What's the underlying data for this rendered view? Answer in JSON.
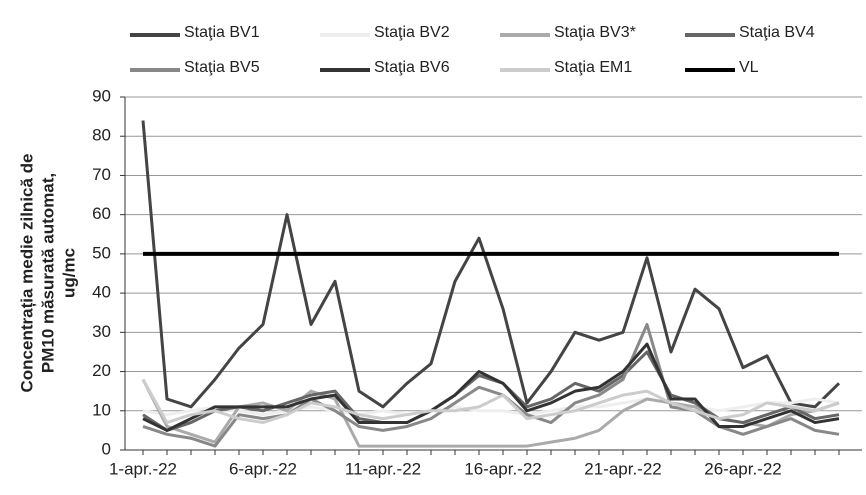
{
  "chart_data": {
    "type": "line",
    "ylabel": [
      "Concentrația medie zilnică de",
      "PM10 măsurată automat,",
      "ug/mc"
    ],
    "categories": [
      "1-apr.-22",
      null,
      null,
      null,
      null,
      "6-apr.-22",
      null,
      null,
      null,
      null,
      "11-apr.-22",
      null,
      null,
      null,
      null,
      "16-apr.-22",
      null,
      null,
      null,
      null,
      "21-apr.-22",
      null,
      null,
      null,
      null,
      "26-apr.-22",
      null,
      null,
      null,
      null
    ],
    "ylim": [
      0,
      90
    ],
    "yticks": [
      0,
      10,
      20,
      30,
      40,
      50,
      60,
      70,
      80,
      90
    ],
    "grid": true,
    "series": [
      {
        "name": "Staţia BV1",
        "color": "#444444",
        "values": [
          84,
          13,
          11,
          18,
          26,
          32,
          60,
          32,
          43,
          15,
          11,
          17,
          22,
          43,
          54,
          36,
          12,
          20,
          30,
          28,
          30,
          49,
          25,
          41,
          36,
          21,
          24,
          12,
          11,
          17
        ]
      },
      {
        "name": "Staţia BV2",
        "color": "#eeeeee",
        "values": [
          10,
          9,
          10,
          11,
          10,
          9,
          10,
          11,
          10,
          9,
          10,
          9,
          10,
          11,
          10,
          10,
          9,
          10,
          11,
          11,
          12,
          13,
          12,
          11,
          10,
          11,
          12,
          12,
          13,
          12
        ]
      },
      {
        "name": "Staţia BV3*",
        "color": "#aaaaaa",
        "values": [
          18,
          6,
          4,
          2,
          11,
          12,
          10,
          15,
          13,
          1,
          1,
          1,
          1,
          1,
          1,
          1,
          1,
          2,
          3,
          5,
          10,
          13,
          12,
          11,
          8,
          7,
          6,
          9,
          10,
          12
        ]
      },
      {
        "name": "Staţia BV4",
        "color": "#666666",
        "values": [
          9,
          5,
          7,
          10,
          11,
          10,
          12,
          14,
          15,
          8,
          7,
          7,
          10,
          14,
          19,
          17,
          11,
          13,
          17,
          15,
          19,
          25,
          14,
          12,
          8,
          7,
          9,
          11,
          8,
          9
        ]
      },
      {
        "name": "Staţia BV5",
        "color": "#888888",
        "values": [
          6,
          4,
          3,
          1,
          9,
          8,
          9,
          13,
          10,
          6,
          5,
          6,
          8,
          12,
          16,
          14,
          9,
          7,
          12,
          14,
          18,
          32,
          11,
          10,
          6,
          4,
          6,
          8,
          5,
          4
        ]
      },
      {
        "name": "Staţia BV6",
        "color": "#333333",
        "values": [
          8,
          5,
          8,
          11,
          11,
          11,
          11,
          13,
          14,
          7,
          7,
          7,
          10,
          14,
          20,
          17,
          10,
          12,
          15,
          16,
          20,
          27,
          13,
          13,
          6,
          6,
          8,
          10,
          7,
          8
        ]
      },
      {
        "name": "Staţia EM1",
        "color": "#cccccc",
        "values": [
          18,
          7,
          9,
          10,
          8,
          7,
          9,
          12,
          11,
          9,
          8,
          9,
          10,
          10,
          11,
          14,
          8,
          9,
          10,
          12,
          14,
          15,
          12,
          10,
          8,
          9,
          12,
          11,
          10,
          12
        ]
      },
      {
        "name": "VL",
        "color": "#000000",
        "values": [
          50,
          50,
          50,
          50,
          50,
          50,
          50,
          50,
          50,
          50,
          50,
          50,
          50,
          50,
          50,
          50,
          50,
          50,
          50,
          50,
          50,
          50,
          50,
          50,
          50,
          50,
          50,
          50,
          50,
          50
        ]
      }
    ]
  }
}
